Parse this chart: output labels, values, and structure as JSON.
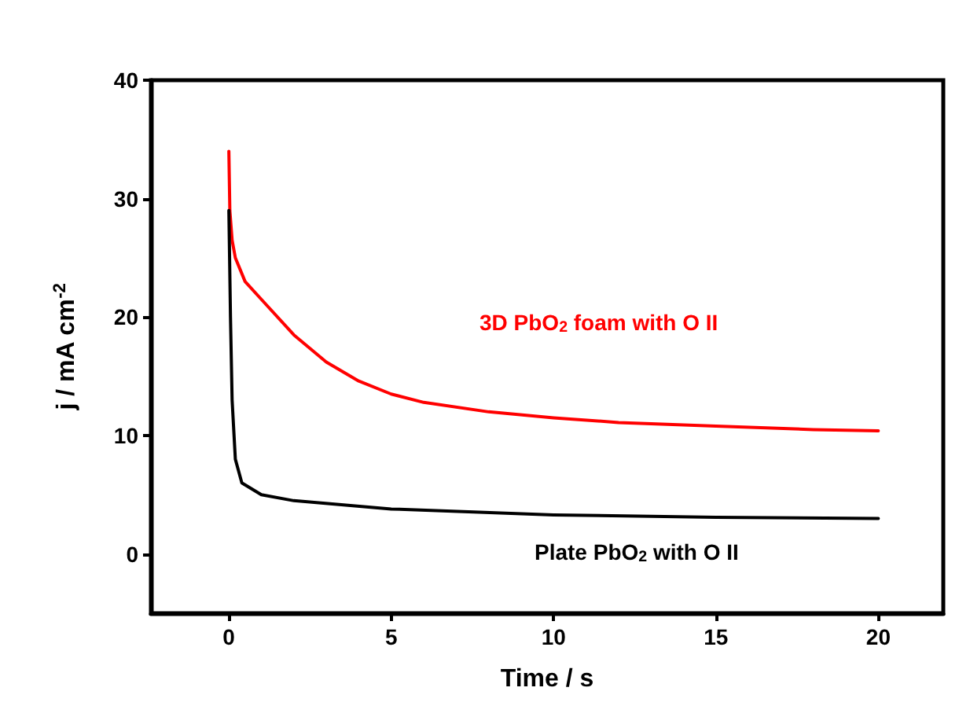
{
  "chart_data": {
    "type": "line",
    "xlabel": "Time / s",
    "ylabel": "j / mA cm$^{-2}$",
    "xlim": [
      -2.4,
      22
    ],
    "ylim": [
      -5,
      40
    ],
    "xticks": [
      0,
      5,
      10,
      15,
      20
    ],
    "yticks": [
      0,
      10,
      20,
      30,
      40
    ],
    "grid": false,
    "marker": "none",
    "line_style": "solid",
    "series": [
      {
        "color": "#ff0000",
        "x": [
          0,
          0.03,
          0.1,
          0.2,
          0.5,
          1,
          2,
          3,
          4,
          5,
          6,
          8,
          10,
          12,
          15,
          18,
          20
        ],
        "values": [
          34,
          29,
          26.5,
          25,
          23,
          21.5,
          18.5,
          16.2,
          14.6,
          13.5,
          12.8,
          12,
          11.5,
          11.1,
          10.8,
          10.5,
          10.4
        ]
      },
      {
        "color": "#000000",
        "x": [
          0,
          0.05,
          0.1,
          0.2,
          0.4,
          1,
          2,
          5,
          10,
          15,
          20
        ],
        "values": [
          29,
          20,
          13,
          8,
          6,
          5,
          4.5,
          3.8,
          3.3,
          3.1,
          3
        ]
      }
    ],
    "annotations": [
      "3D PbO$_{2}$ foam with O II",
      "Plate PbO$_{2}$ with O II"
    ]
  }
}
